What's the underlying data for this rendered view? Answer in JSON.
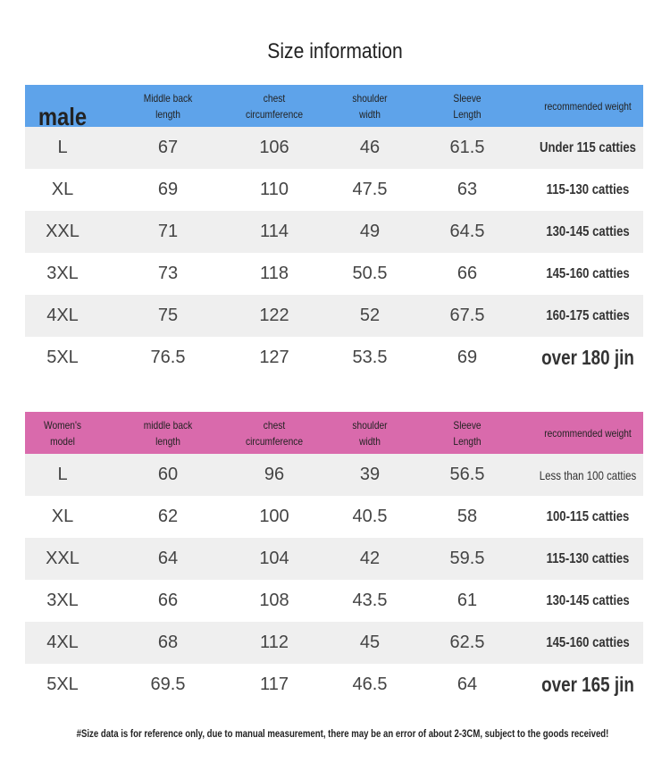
{
  "title": "Size information",
  "colors": {
    "male_header": "#5ea3ea",
    "women_header": "#d96aac",
    "alt_row": "#efefef"
  },
  "male": {
    "headers": [
      "male",
      "Middle back\nlength",
      "chest\ncircumference",
      "shoulder\nwidth",
      "Sleeve\nLength",
      "recommended weight"
    ],
    "rows": [
      [
        "L",
        "67",
        "106",
        "46",
        "61.5",
        "Under 115 catties"
      ],
      [
        "XL",
        "69",
        "110",
        "47.5",
        "63",
        "115-130 catties"
      ],
      [
        "XXL",
        "71",
        "114",
        "49",
        "64.5",
        "130-145 catties"
      ],
      [
        "3XL",
        "73",
        "118",
        "50.5",
        "66",
        "145-160 catties"
      ],
      [
        "4XL",
        "75",
        "122",
        "52",
        "67.5",
        "160-175 catties"
      ],
      [
        "5XL",
        "76.5",
        "127",
        "53.5",
        "69",
        "over 180 jin"
      ]
    ]
  },
  "women": {
    "headers": [
      "Women's\nmodel",
      "middle back\nlength",
      "chest\ncircumference",
      "shoulder\nwidth",
      "Sleeve\nLength",
      "recommended weight"
    ],
    "rows": [
      [
        "L",
        "60",
        "96",
        "39",
        "56.5",
        "Less than 100 catties"
      ],
      [
        "XL",
        "62",
        "100",
        "40.5",
        "58",
        "100-115 catties"
      ],
      [
        "XXL",
        "64",
        "104",
        "42",
        "59.5",
        "115-130 catties"
      ],
      [
        "3XL",
        "66",
        "108",
        "43.5",
        "61",
        "130-145 catties"
      ],
      [
        "4XL",
        "68",
        "112",
        "45",
        "62.5",
        "145-160 catties"
      ],
      [
        "5XL",
        "69.5",
        "117",
        "46.5",
        "64",
        "over 165 jin"
      ]
    ]
  },
  "footer": "#Size data is for reference only, due to manual measurement, there may be an error of about 2-3CM, subject to the goods received!"
}
